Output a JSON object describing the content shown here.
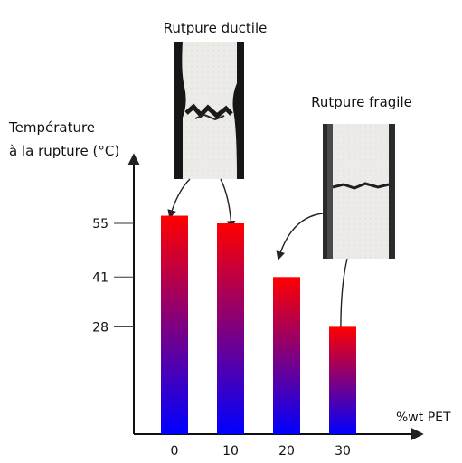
{
  "chart_data": {
    "type": "bar",
    "title": "",
    "ylabel": [
      "Température",
      "à la rupture (°C)"
    ],
    "xlabel": "%wt PET",
    "categories": [
      "0",
      "10",
      "20",
      "30"
    ],
    "values": [
      57,
      55,
      41,
      28
    ],
    "yticks": [
      "55",
      "41",
      "28"
    ],
    "ytick_values": [
      55,
      41,
      28
    ],
    "ylim": [
      0,
      62
    ],
    "bar_gradient": {
      "top": "#ff0000",
      "bottom": "#0000ff"
    },
    "grid": false,
    "legend": "none",
    "annotations": [
      {
        "text": "Rutpure ductile",
        "points_to": [
          "0",
          "10"
        ]
      },
      {
        "text": "Rutpure fragile",
        "points_to": [
          "20",
          "30"
        ]
      }
    ]
  }
}
